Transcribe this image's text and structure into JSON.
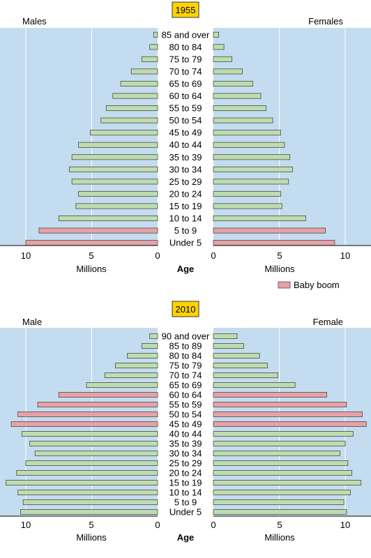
{
  "chart_data": [
    {
      "type": "bar",
      "title": "1955",
      "left_label": "Males",
      "right_label": "Females",
      "xlabel_left": "Millions",
      "xlabel_right": "Millions",
      "center_label": "Age",
      "xticks": [
        "10",
        "5",
        "0",
        "0",
        "5",
        "10"
      ],
      "xlim": [
        0,
        12
      ],
      "categories": [
        "85 and over",
        "80 to 84",
        "75 to 79",
        "70 to 74",
        "65 to 69",
        "60 to 64",
        "55 to 59",
        "50 to 54",
        "45 to 49",
        "40 to 44",
        "35 to 39",
        "30 to 34",
        "25 to 29",
        "20 to 24",
        "15 to 19",
        "10 to 14",
        "5 to 9",
        "Under 5"
      ],
      "series": [
        {
          "name": "Males",
          "values": [
            0.3,
            0.6,
            1.2,
            2.0,
            2.8,
            3.4,
            3.9,
            4.3,
            5.1,
            6.0,
            6.5,
            6.7,
            6.5,
            6.0,
            6.2,
            7.5,
            9.0,
            10.0
          ]
        },
        {
          "name": "Females",
          "values": [
            0.4,
            0.8,
            1.4,
            2.2,
            3.0,
            3.6,
            4.0,
            4.5,
            5.1,
            5.4,
            5.8,
            6.0,
            5.7,
            5.1,
            5.2,
            7.0,
            8.5,
            9.2
          ]
        }
      ],
      "highlight": [
        false,
        false,
        false,
        false,
        false,
        false,
        false,
        false,
        false,
        false,
        false,
        false,
        false,
        false,
        false,
        false,
        true,
        true
      ],
      "grid": true,
      "colors": {
        "normal": "#bfdcae",
        "baby_boom": "#e8a1a6",
        "background": "#c3dcef",
        "title_box": "#ffd400",
        "bar_edge": "#4a4a4a"
      },
      "legend": {
        "label": "Baby boom",
        "position": "bottom-right"
      }
    },
    {
      "type": "bar",
      "title": "2010",
      "left_label": "Male",
      "right_label": "Female",
      "xlabel_left": "Millions",
      "xlabel_right": "Millions",
      "center_label": "Age",
      "xticks": [
        "10",
        "5",
        "0",
        "0",
        "5",
        "10"
      ],
      "xlim": [
        0,
        12
      ],
      "categories": [
        "90 and over",
        "85 to 89",
        "80 to 84",
        "75 to 79",
        "70 to 74",
        "65 to 69",
        "60 to 64",
        "55 to 59",
        "50 to 54",
        "45 to 49",
        "40 to 44",
        "35 to 39",
        "30 to 34",
        "25 to 29",
        "20 to 24",
        "15 to 19",
        "10 to 14",
        "5 to 9",
        "Under 5"
      ],
      "series": [
        {
          "name": "Male",
          "values": [
            0.6,
            1.2,
            2.3,
            3.2,
            4.0,
            5.4,
            7.5,
            9.1,
            10.6,
            11.1,
            10.3,
            9.7,
            9.3,
            10.0,
            10.7,
            11.5,
            10.6,
            10.2,
            10.4
          ]
        },
        {
          "name": "Female",
          "values": [
            1.8,
            2.3,
            3.5,
            4.1,
            4.9,
            6.2,
            8.6,
            10.1,
            11.3,
            11.6,
            10.6,
            10.0,
            9.6,
            10.2,
            10.5,
            11.2,
            10.4,
            9.9,
            10.1
          ]
        }
      ],
      "highlight": [
        false,
        false,
        false,
        false,
        false,
        false,
        true,
        true,
        true,
        true,
        false,
        false,
        false,
        false,
        false,
        false,
        false,
        false,
        false
      ],
      "grid": true,
      "colors": {
        "normal": "#bfdcae",
        "baby_boom": "#e8a1a6",
        "background": "#c3dcef",
        "title_box": "#ffd400",
        "bar_edge": "#4a4a4a"
      }
    }
  ]
}
